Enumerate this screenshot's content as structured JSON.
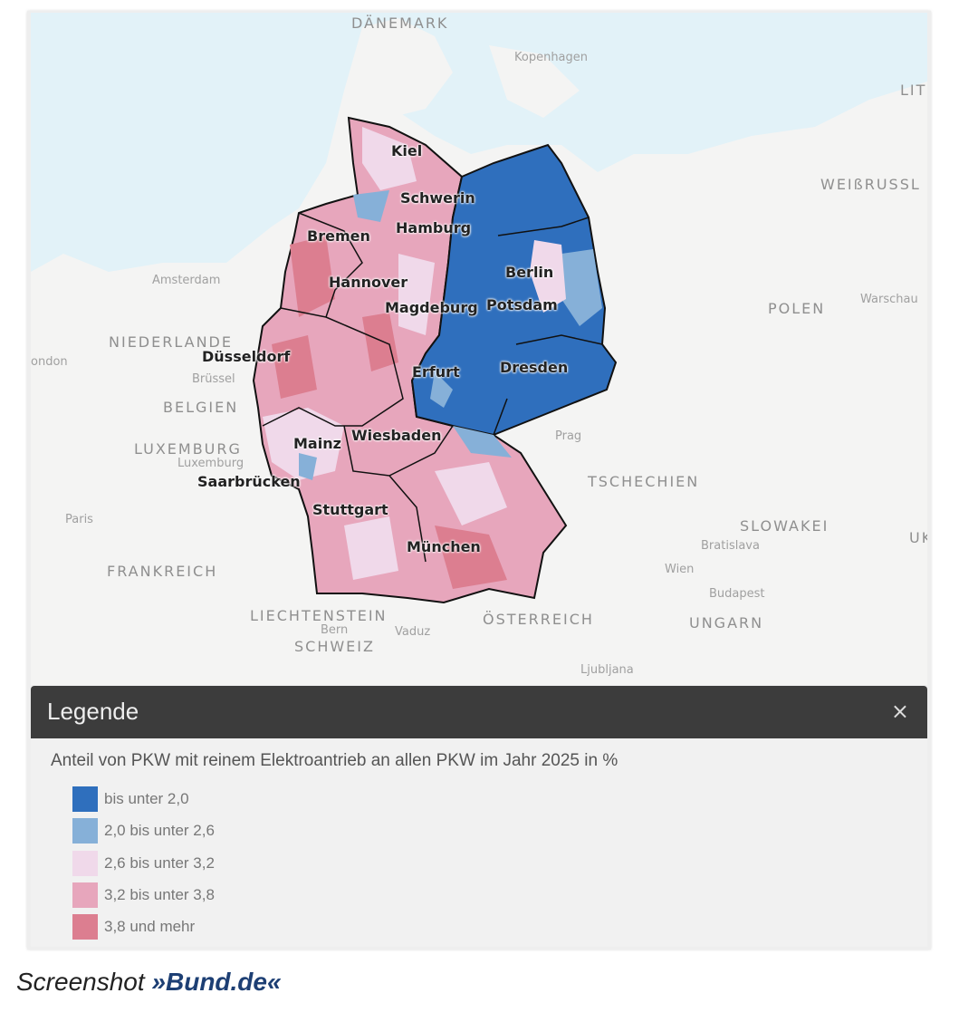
{
  "map": {
    "countries": [
      "DÄNEMARK",
      "LIT",
      "WEIßRUSSL",
      "POLEN",
      "NIEDERLANDE",
      "BELGIEN",
      "LUXEMBURG",
      "FRANKREICH",
      "TSCHECHIEN",
      "SLOWAKEI",
      "ÖSTERREICH",
      "UNGARN",
      "LIECHTENSTEIN",
      "SCHWEIZ",
      "UK"
    ],
    "cities": [
      "Kopenhagen",
      "Amsterdam",
      "Warschau",
      "ondon",
      "Brüssel",
      "Luxemburg",
      "Paris",
      "Prag",
      "Bratislava",
      "Wien",
      "Budapest",
      "Bern",
      "Vaduz",
      "Ljubljana"
    ],
    "german_cities": [
      "Kiel",
      "Schwerin",
      "Hamburg",
      "Bremen",
      "Hannover",
      "Magdeburg",
      "Potsdam",
      "Berlin",
      "Düsseldorf",
      "Erfurt",
      "Dresden",
      "Mainz",
      "Wiesbaden",
      "Saarbrücken",
      "Stuttgart",
      "München"
    ],
    "colors": {
      "sea": "#e2f2f8",
      "land": "#f4f4f3",
      "border": "#111111"
    }
  },
  "legend": {
    "title": "Legende",
    "close_icon": "×",
    "caption": "Anteil von PKW mit reinem Elektroantrieb an allen PKW im Jahr 2025 in %",
    "items": [
      {
        "label": "bis unter 2,0",
        "color": "#2f6fbd"
      },
      {
        "label": "2,0 bis unter 2,6",
        "color": "#86b0d8"
      },
      {
        "label": "2,6 bis unter 3,2",
        "color": "#f0d9ea"
      },
      {
        "label": "3,2 bis unter 3,8",
        "color": "#e7a6bc"
      },
      {
        "label": "3,8 und mehr",
        "color": "#dc7e90"
      }
    ]
  },
  "caption": {
    "prefix": "Screenshot ",
    "source": "»Bund.de«"
  }
}
